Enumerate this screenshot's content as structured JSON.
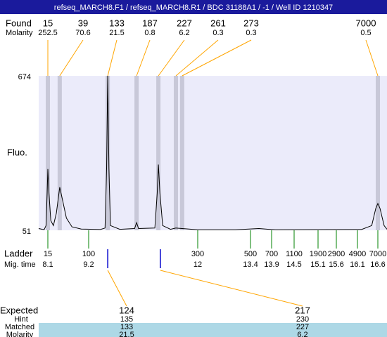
{
  "header": {
    "title": "refseq_MARCH8.F1 / refseq_MARCH8.R1 / BDC 31188A1 / -1 / Well ID 1210347"
  },
  "chart_data": {
    "type": "electropherogram",
    "y_label": "Fluo.",
    "ylim": [
      51,
      674
    ],
    "yticks": [
      51,
      674
    ],
    "xlim": [
      7.85,
      16.82
    ],
    "trace": {
      "color": "#000000",
      "x": [
        7.85,
        7.95,
        8.0,
        8.05,
        8.08,
        8.1,
        8.13,
        8.18,
        8.25,
        8.33,
        8.42,
        8.5,
        8.6,
        8.75,
        9.0,
        9.5,
        9.62,
        9.66,
        9.69,
        9.72,
        9.76,
        10.0,
        10.38,
        10.43,
        10.48,
        10.9,
        10.96,
        10.99,
        11.03,
        11.1,
        11.3,
        11.44,
        11.6,
        12.0,
        13.0,
        13.6,
        14.0,
        16.2,
        16.45,
        16.55,
        16.6,
        16.65,
        16.75,
        16.82
      ],
      "values": [
        58,
        55,
        54,
        70,
        200,
        298,
        200,
        90,
        70,
        120,
        225,
        170,
        100,
        65,
        56,
        54,
        60,
        300,
        674,
        300,
        70,
        55,
        58,
        82,
        58,
        60,
        200,
        316,
        200,
        70,
        55,
        60,
        58,
        53,
        53,
        58,
        53,
        54,
        70,
        140,
        159,
        140,
        70,
        55
      ]
    },
    "found": {
      "label": "Found",
      "molarity_label": "Molarity",
      "band_color": "#c8c8d8",
      "line_color": "#ffa500",
      "peaks": [
        {
          "size": 15,
          "molarity": 252.5,
          "time": 8.1
        },
        {
          "size": 39,
          "molarity": 70.6,
          "time": 8.42
        },
        {
          "size": 133,
          "molarity": 21.5,
          "time": 9.69
        },
        {
          "size": 187,
          "molarity": 0.8,
          "time": 10.43
        },
        {
          "size": 227,
          "molarity": 6.2,
          "time": 10.99
        },
        {
          "size": 261,
          "molarity": 0.3,
          "time": 11.44
        },
        {
          "size": 273,
          "molarity": 0.3,
          "time": 11.6
        },
        {
          "size": 7000,
          "molarity": 0.5,
          "time": 16.6
        }
      ]
    },
    "ladder": {
      "label": "Ladder",
      "time_label": "Mig. time",
      "color": "#008000",
      "sizes": [
        15,
        100,
        300,
        500,
        700,
        1100,
        1900,
        2900,
        4900,
        7000
      ],
      "times": [
        8.1,
        9.2,
        12,
        13.4,
        13.9,
        14.5,
        15.1,
        15.6,
        16.1,
        16.6
      ]
    },
    "expected": {
      "label": "Expected",
      "hint_label": "Hint",
      "matched_label": "Matched",
      "molarity_label": "Molarity",
      "marker_color": "#0000cc",
      "items": [
        {
          "size": 124,
          "hint": 135,
          "matched": 133,
          "molarity": 21.5,
          "time": 9.69
        },
        {
          "size": 217,
          "hint": 230,
          "matched": 227,
          "molarity": 6.2,
          "time": 11.04
        }
      ]
    }
  }
}
